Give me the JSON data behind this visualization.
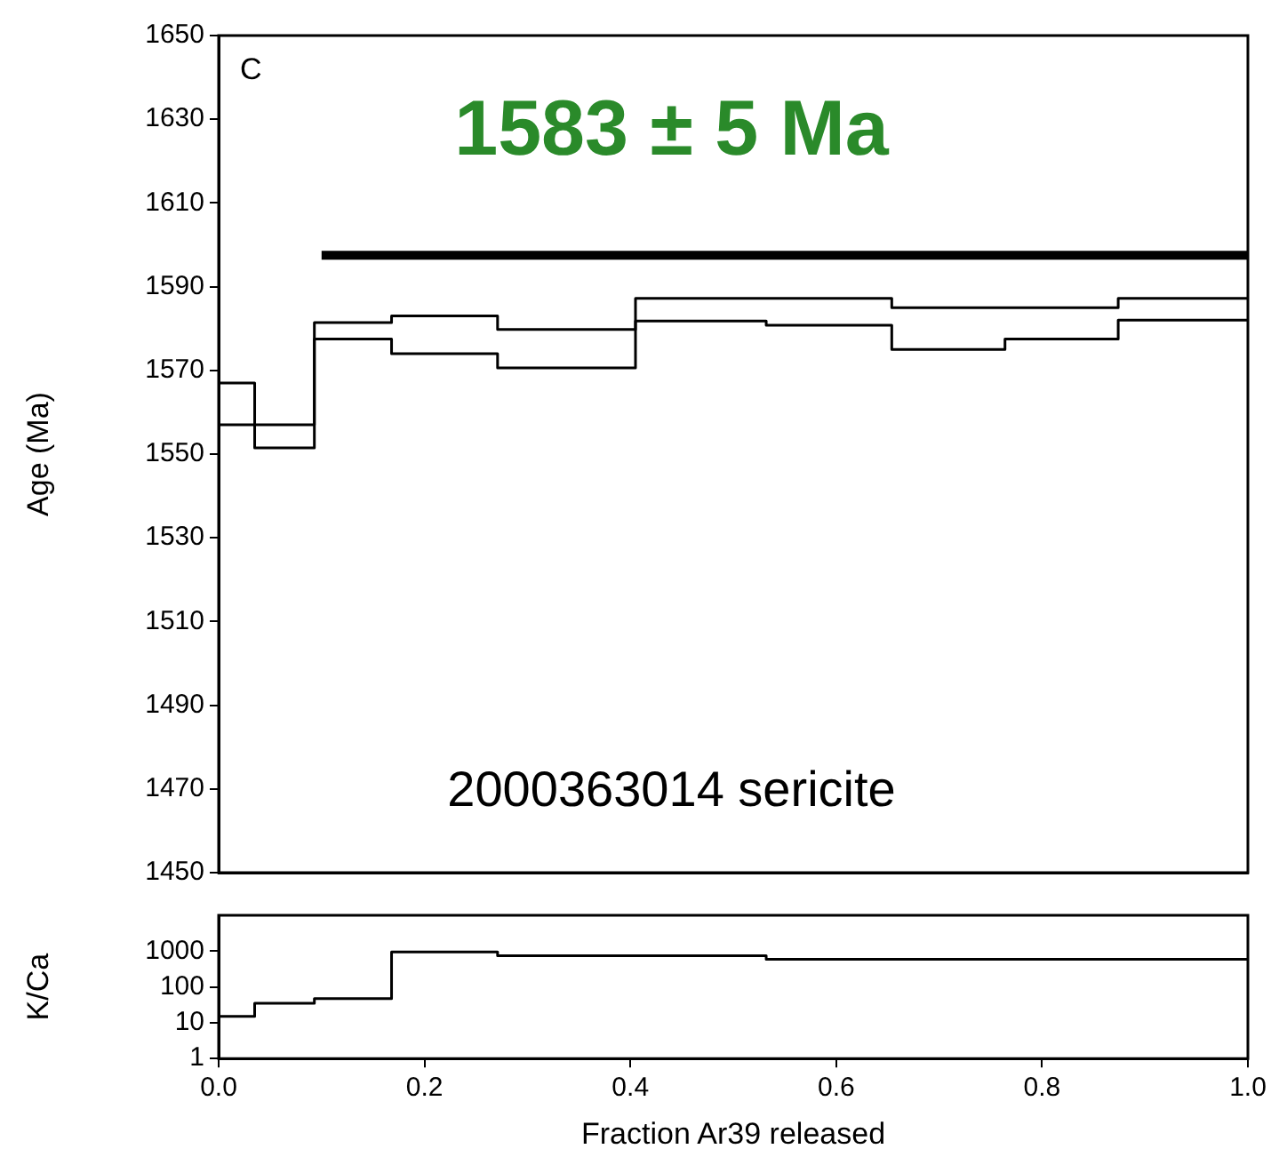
{
  "chart_data": [
    {
      "type": "step",
      "ylabel": "Age (Ma)",
      "xlim": [
        0,
        1
      ],
      "ylim": [
        1450,
        1650
      ],
      "yticks": [
        1450,
        1470,
        1490,
        1510,
        1530,
        1550,
        1570,
        1590,
        1610,
        1630,
        1650
      ],
      "tick_labels": "y",
      "grid": false,
      "series": [
        {
          "color": "#000000",
          "x": [
            0,
            0.035,
            0.093,
            0.168,
            0.271,
            0.405,
            0.532,
            0.654,
            0.764,
            0.874,
            1.0
          ],
          "values": [
            1567,
            1557,
            1581.4,
            1583,
            1579.8,
            1587.2,
            1587.2,
            1585,
            1585,
            1587.2,
            1587.2
          ]
        },
        {
          "color": "#000000",
          "x": [
            0,
            0.035,
            0.093,
            0.168,
            0.271,
            0.405,
            0.532,
            0.654,
            0.764,
            0.874,
            1.0
          ],
          "values": [
            1557,
            1551.5,
            1577.5,
            1574,
            1570.6,
            1581.8,
            1580.8,
            1575,
            1577.5,
            1582,
            1582
          ]
        },
        {
          "type": "line",
          "color": "#000000",
          "x": [
            0.1,
            1.0
          ],
          "values": [
            1597.5,
            1597.5
          ]
        }
      ],
      "annotations": [
        "C",
        "1583 ± 5 Ma",
        "2000363014 sericite"
      ]
    },
    {
      "type": "step",
      "xlabel": "Fraction Ar39 released",
      "ylabel": "K/Ca",
      "log": "y",
      "xlim": [
        0,
        1
      ],
      "xticks": [
        {
          "value": 0,
          "label": "0.0"
        },
        0.2,
        0.4,
        0.6,
        0.8,
        {
          "value": 1,
          "label": "1.0"
        }
      ],
      "ylim": [
        1,
        10000
      ],
      "yticks": [
        1,
        10,
        100,
        1000
      ],
      "grid": false,
      "series": [
        {
          "color": "#000000",
          "x": [
            0,
            0.035,
            0.093,
            0.168,
            0.271,
            0.405,
            0.532,
            0.654,
            0.764,
            0.874,
            1.0
          ],
          "values": [
            15,
            35,
            47,
            950,
            740,
            740,
            590,
            590,
            590,
            590,
            590
          ]
        }
      ]
    }
  ]
}
